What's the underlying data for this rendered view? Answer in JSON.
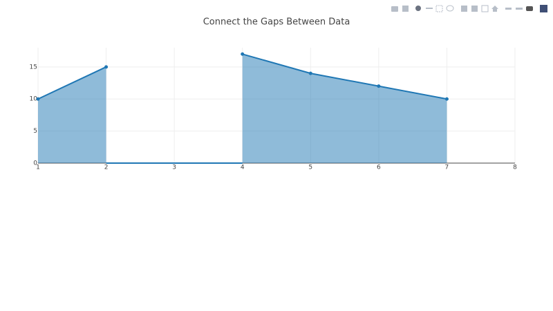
{
  "chart_data": {
    "type": "area",
    "title": "Connect the Gaps Between Data",
    "x": [
      1,
      2,
      3,
      4,
      5,
      6,
      7,
      8
    ],
    "series": [
      {
        "color": "#1f77b4",
        "values": [
          10,
          15,
          null,
          17,
          14,
          12,
          10,
          null
        ]
      }
    ],
    "xlim": [
      1,
      8
    ],
    "xticks": [
      1,
      2,
      3,
      4,
      5,
      6,
      7,
      8
    ],
    "ylim": [
      0,
      18
    ],
    "yticks": [
      0,
      5,
      10,
      15
    ],
    "grid": true
  }
}
